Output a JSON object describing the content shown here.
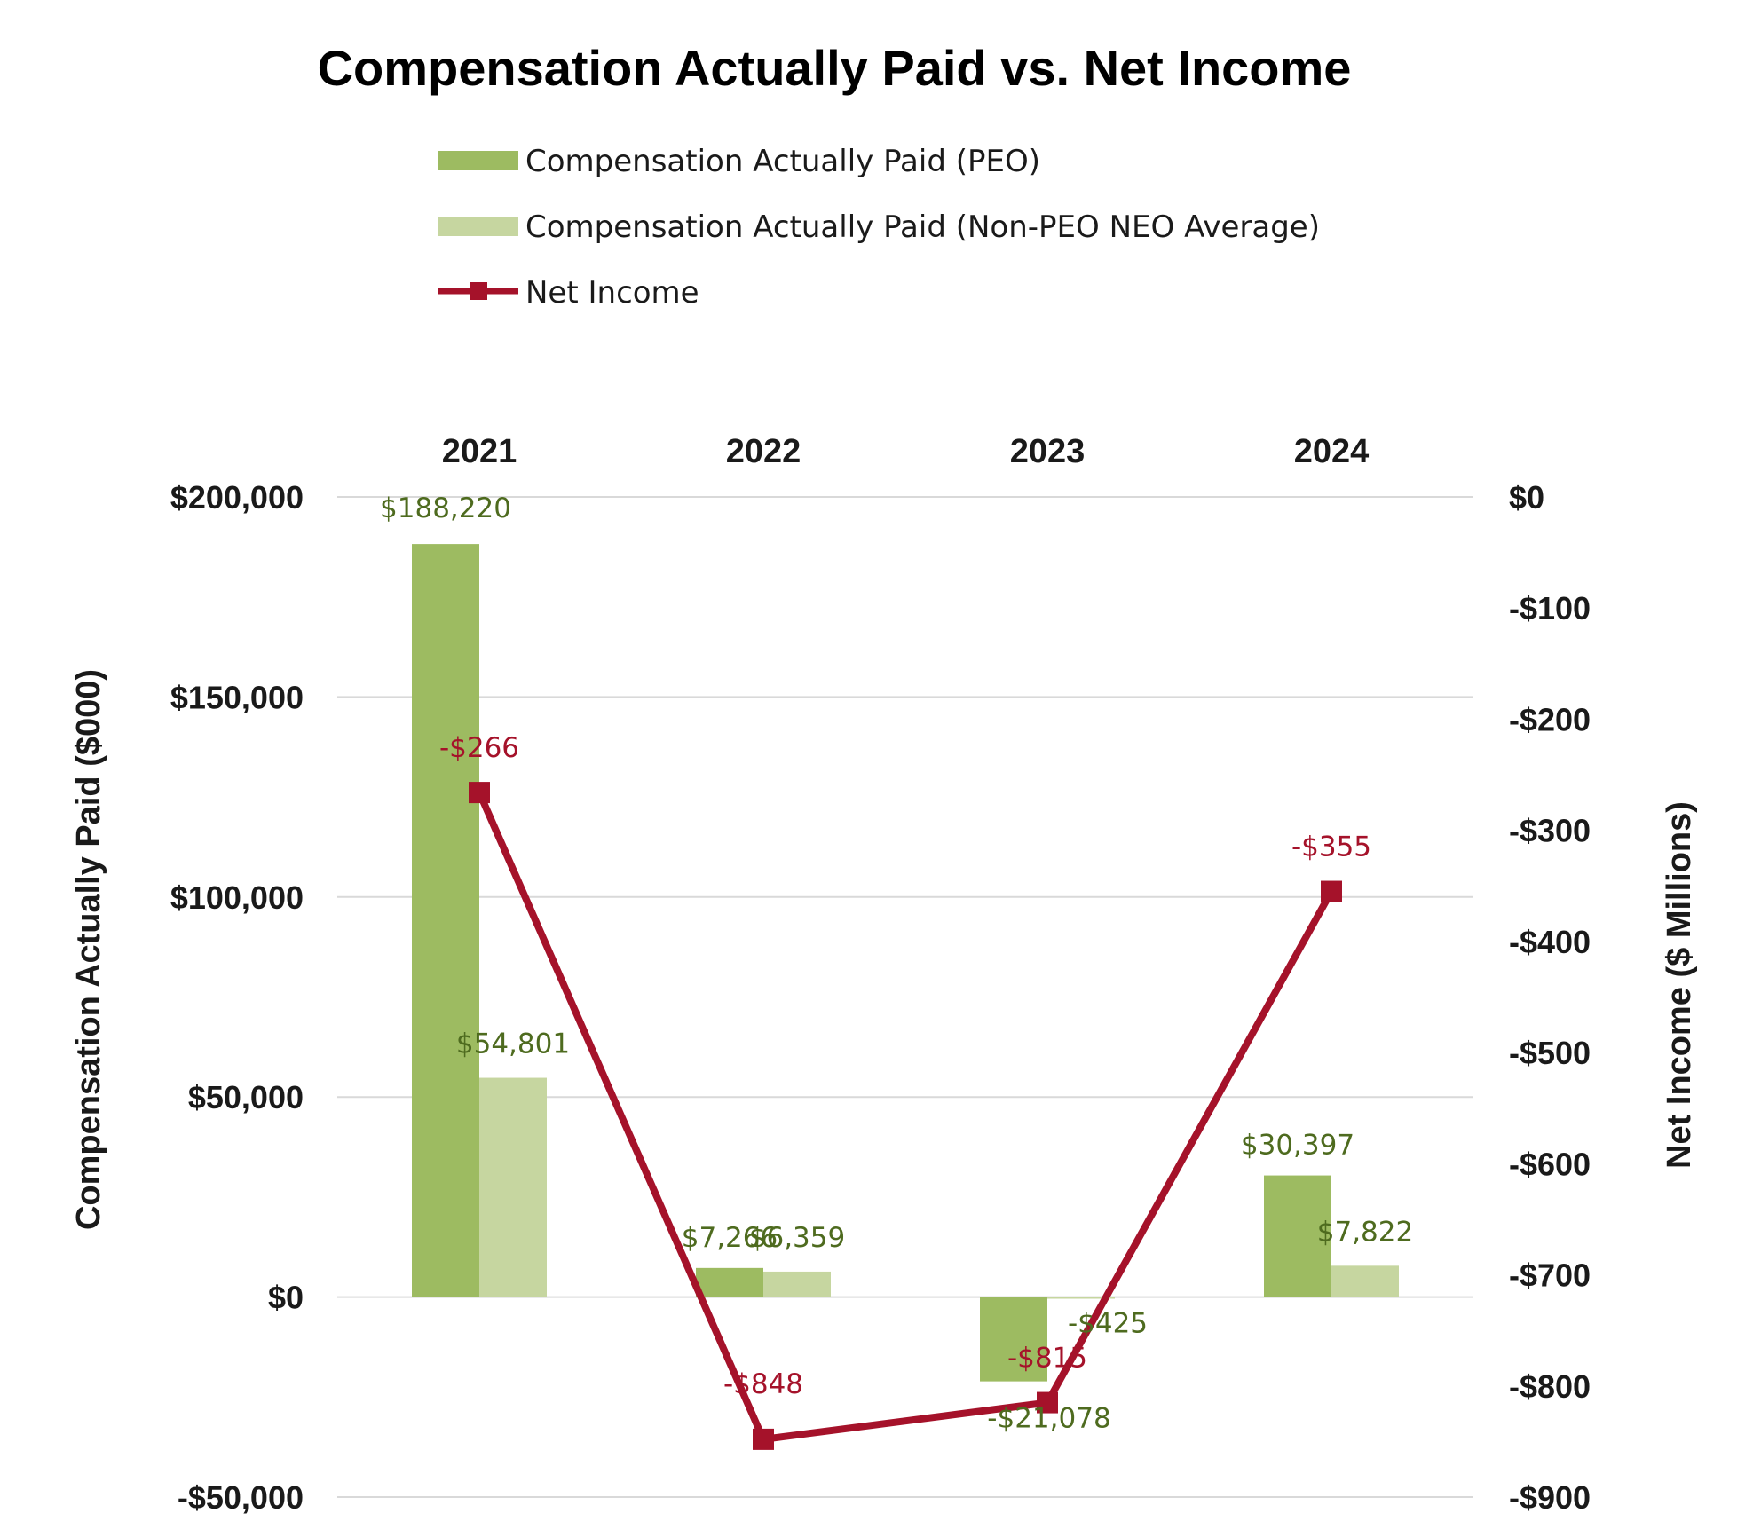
{
  "chart_data": {
    "type": "bar",
    "title": "Compensation Actually Paid vs. Net Income",
    "categories": [
      "2021",
      "2022",
      "2023",
      "2024"
    ],
    "series": [
      {
        "name": "Compensation Actually Paid (PEO)",
        "type": "bar",
        "axis": "left",
        "color": "#9dbb61",
        "values": [
          188220,
          7266,
          -21078,
          30397
        ],
        "labels": [
          "$188,220",
          "$7,266",
          "-$21,078",
          "$30,397"
        ]
      },
      {
        "name": "Compensation Actually Paid (Non-PEO NEO Average)",
        "type": "bar",
        "axis": "left",
        "color": "#c6d6a0",
        "values": [
          54801,
          6359,
          -425,
          7822
        ],
        "labels": [
          "$54,801",
          "$6,359",
          "-$425",
          "$7,822"
        ]
      },
      {
        "name": "Net Income",
        "type": "line",
        "axis": "right",
        "color": "#a5122a",
        "values": [
          -266,
          -848,
          -815,
          -355
        ],
        "labels": [
          "-$266",
          "-$848",
          "-$815",
          "-$355"
        ]
      }
    ],
    "ylabel": "Compensation Actually Paid ($000)",
    "y2label": "Net Income ($ Millions)",
    "ylim": [
      -50000,
      200000
    ],
    "y2lim": [
      -900,
      0
    ],
    "yticks": [
      200000,
      150000,
      100000,
      50000,
      0,
      -50000
    ],
    "ytick_labels": [
      "$200,000",
      "$150,000",
      "$100,000",
      "$50,000",
      "$0",
      "-$50,000"
    ],
    "y2ticks": [
      0,
      -100,
      -200,
      -300,
      -400,
      -500,
      -600,
      -700,
      -800,
      -900
    ],
    "y2tick_labels": [
      "$0",
      "-$100",
      "-$200",
      "-$300",
      "-$400",
      "-$500",
      "-$600",
      "-$700",
      "-$800",
      "-$900"
    ],
    "legend_position": "top",
    "category_axis_position": "top",
    "grid": true
  }
}
